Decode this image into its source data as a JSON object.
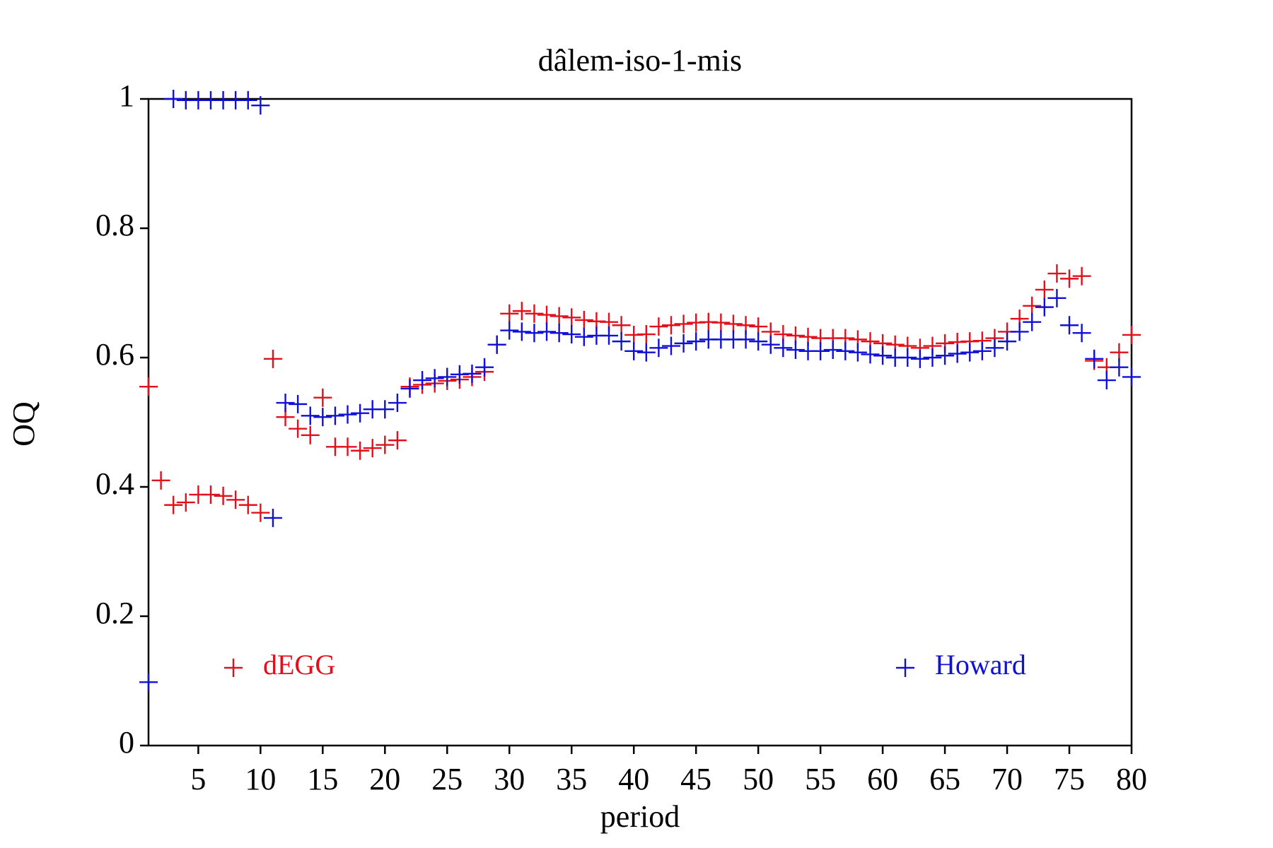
{
  "chart_data": {
    "type": "scatter",
    "title": "dâlem-iso-1-mis",
    "x_label": "period",
    "y_label": "OQ",
    "x": [
      1,
      2,
      3,
      4,
      5,
      6,
      7,
      8,
      9,
      10,
      11,
      12,
      13,
      14,
      15,
      16,
      17,
      18,
      19,
      20,
      21,
      22,
      23,
      24,
      25,
      26,
      27,
      28,
      29,
      30,
      31,
      32,
      33,
      34,
      35,
      36,
      37,
      38,
      39,
      40,
      41,
      42,
      43,
      44,
      45,
      46,
      47,
      48,
      49,
      50,
      51,
      52,
      53,
      54,
      55,
      56,
      57,
      58,
      59,
      60,
      61,
      62,
      63,
      64,
      65,
      66,
      67,
      68,
      69,
      70,
      71,
      72,
      73,
      74,
      75,
      76,
      77,
      78,
      79,
      80
    ],
    "series": [
      {
        "name": "dEGG",
        "color": "#e3101c",
        "values": [
          0.555,
          0.41,
          0.372,
          0.376,
          0.388,
          0.388,
          0.386,
          0.38,
          0.372,
          0.36,
          0.598,
          0.508,
          0.49,
          0.48,
          0.538,
          0.462,
          0.462,
          0.456,
          0.46,
          0.465,
          0.472,
          0.555,
          0.558,
          0.56,
          0.564,
          0.566,
          0.57,
          0.578,
          0.62,
          0.668,
          0.672,
          0.668,
          0.666,
          0.664,
          0.662,
          0.658,
          0.656,
          0.655,
          0.65,
          0.635,
          0.636,
          0.648,
          0.65,
          0.652,
          0.654,
          0.655,
          0.654,
          0.652,
          0.65,
          0.648,
          0.64,
          0.636,
          0.634,
          0.632,
          0.63,
          0.63,
          0.63,
          0.628,
          0.625,
          0.622,
          0.62,
          0.618,
          0.615,
          0.618,
          0.622,
          0.624,
          0.625,
          0.626,
          0.63,
          0.64,
          0.66,
          0.68,
          0.705,
          0.73,
          0.722,
          0.726,
          0.595,
          0.585,
          0.608,
          0.635
        ]
      },
      {
        "name": "Howard",
        "color": "#1010d8",
        "values": [
          0.098,
          null,
          1.0,
          0.998,
          0.998,
          0.998,
          0.998,
          0.998,
          0.998,
          0.99,
          0.352,
          0.53,
          0.528,
          0.51,
          0.508,
          0.51,
          0.512,
          0.514,
          0.52,
          0.52,
          0.53,
          0.552,
          0.565,
          0.568,
          0.57,
          0.574,
          0.575,
          0.585,
          0.62,
          0.642,
          0.64,
          0.638,
          0.64,
          0.638,
          0.636,
          0.632,
          0.634,
          0.634,
          0.625,
          0.61,
          0.608,
          0.615,
          0.618,
          0.622,
          0.625,
          0.628,
          0.628,
          0.628,
          0.628,
          0.625,
          0.62,
          0.615,
          0.612,
          0.61,
          0.61,
          0.612,
          0.61,
          0.608,
          0.605,
          0.603,
          0.6,
          0.6,
          0.598,
          0.6,
          0.603,
          0.606,
          0.608,
          0.61,
          0.615,
          0.625,
          0.64,
          0.655,
          0.678,
          0.692,
          0.65,
          0.638,
          0.598,
          0.565,
          0.585,
          0.57
        ]
      }
    ],
    "xlim": [
      1,
      80
    ],
    "xticks": [
      5,
      10,
      15,
      20,
      25,
      30,
      35,
      40,
      45,
      50,
      55,
      60,
      65,
      70,
      75,
      80
    ],
    "ylim": [
      0,
      1
    ],
    "yticks": [
      0,
      0.2,
      0.4,
      0.6,
      0.8,
      1
    ],
    "marker": "+",
    "legend": "bottom",
    "grid": false
  }
}
